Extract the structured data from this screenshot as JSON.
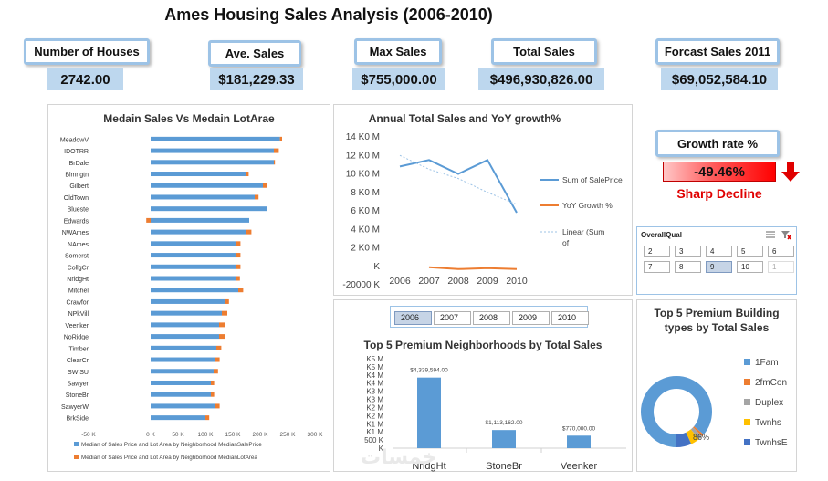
{
  "title": "Ames Housing Sales Analysis (2006-2010)",
  "kpis": [
    {
      "label": "Number of Houses",
      "value": "2742.00"
    },
    {
      "label": "Ave. Sales",
      "value": "$181,229.33"
    },
    {
      "label": "Max Sales",
      "value": "$755,000.00"
    },
    {
      "label": "Total Sales",
      "value": "$496,930,826.00"
    },
    {
      "label": "Forcast Sales 2011",
      "value": "$69,052,584.10"
    }
  ],
  "growth": {
    "label": "Growth rate %",
    "value": "-49.46%",
    "status": "Sharp Decline",
    "color": "#e00000"
  },
  "slicer_qual": {
    "title": "OverallQual",
    "items": [
      "2",
      "3",
      "4",
      "5",
      "6",
      "7",
      "8",
      "9",
      "10",
      "1"
    ],
    "selected": "9",
    "dimmed": "1"
  },
  "slicer_year": {
    "items": [
      "2006",
      "2007",
      "2008",
      "2009",
      "2010"
    ],
    "selected": "2006"
  },
  "watermark": "خمسات",
  "chart_data": [
    {
      "type": "bar",
      "orientation": "horizontal",
      "title": "Medain Sales Vs Medain LotArae",
      "categories": [
        "MeadowV",
        "IDOTRR",
        "BrDale",
        "Blmngtn",
        "Gilbert",
        "OldTown",
        "Blueste",
        "Edwards",
        "NWAmes",
        "NAmes",
        "Somerst",
        "CollgCr",
        "NridgHt",
        "Mitchel",
        "Crawfor",
        "NPkVill",
        "Veenker",
        "NoRidge",
        "Timber",
        "ClearCr",
        "SWISU",
        "Sawyer",
        "StoneBr",
        "SawyerW",
        "BrkSide"
      ],
      "series": [
        {
          "name": "Median of Sales Price and Lot Area by Neighborhood MedianSalePrice",
          "color": "#5b9bd5",
          "values": [
            236000,
            225000,
            225000,
            175000,
            205000,
            190000,
            213000,
            180000,
            175000,
            155000,
            155000,
            155000,
            155000,
            160000,
            135000,
            130000,
            125000,
            125000,
            120000,
            117000,
            115000,
            110000,
            110000,
            117000,
            100000
          ]
        },
        {
          "name": "Median of Sales Price and Lot Area by Neighborhood MedianLotArea",
          "color": "#ed7d31",
          "values": [
            4000,
            9000,
            2000,
            4000,
            8000,
            7000,
            0,
            -8000,
            9000,
            9000,
            9000,
            9000,
            8000,
            9000,
            8000,
            10000,
            10000,
            10000,
            9000,
            9000,
            8000,
            6000,
            6000,
            9000,
            7000
          ]
        }
      ],
      "xlim": [
        -100000,
        300000
      ],
      "xticks": [
        "-50 K",
        "0 K",
        "50 K",
        "100 K",
        "150 K",
        "200 K",
        "250 K",
        "300 K"
      ]
    },
    {
      "type": "line",
      "title": "Annual Total Sales and YoY growth%",
      "categories": [
        "2006",
        "2007",
        "2008",
        "2009",
        "2010"
      ],
      "series": [
        {
          "name": "Sum of SalePrice",
          "color": "#5b9bd5",
          "values": [
            10800000,
            11500000,
            10000000,
            11500000,
            5800000
          ]
        },
        {
          "name": "YoY Growth %",
          "color": "#ed7d31",
          "values": [
            null,
            -100000,
            -300000,
            -200000,
            -300000
          ]
        },
        {
          "name": "Linear (Sum of SalePrice)",
          "color": "#9dc3e6",
          "values": [
            12000000,
            10500000,
            9500000,
            8000000,
            6700000
          ]
        }
      ],
      "yticks": [
        "14 K0 M",
        "12 K0 M",
        "10 K0 M",
        "8 K0 M",
        "6 K0 M",
        "4 K0 M",
        "2 K0 M",
        "K",
        "-20000 K"
      ],
      "ylim": [
        -2000000,
        14000000
      ]
    },
    {
      "type": "bar",
      "title": "Top 5 Premium Neighborhoods by Total Sales",
      "categories": [
        "NridgHt",
        "StoneBr",
        "Veenker"
      ],
      "values": [
        4339594,
        1113162,
        770000
      ],
      "data_labels": [
        "$4,339,594.00",
        "$1,113,162.00",
        "$770,000.00"
      ],
      "yticks": [
        "K5 M",
        "K5 M",
        "K4 M",
        "K4 M",
        "K3 M",
        "K3 M",
        "K2 M",
        "K2 M",
        "K1 M",
        "K1 M",
        "500 K",
        "K"
      ],
      "ylim": [
        0,
        5500000
      ],
      "color": "#5b9bd5"
    },
    {
      "type": "pie",
      "donut": true,
      "title": "Top 5 Premium Building types by Total Sales",
      "categories": [
        "1Fam",
        "2fmCon",
        "Duplex",
        "Twnhs",
        "TwnhsE"
      ],
      "values": [
        86,
        1,
        2,
        4,
        7
      ],
      "colors": [
        "#5b9bd5",
        "#ed7d31",
        "#a5a5a5",
        "#ffc000",
        "#4472c4"
      ],
      "center_label": "86%"
    }
  ]
}
